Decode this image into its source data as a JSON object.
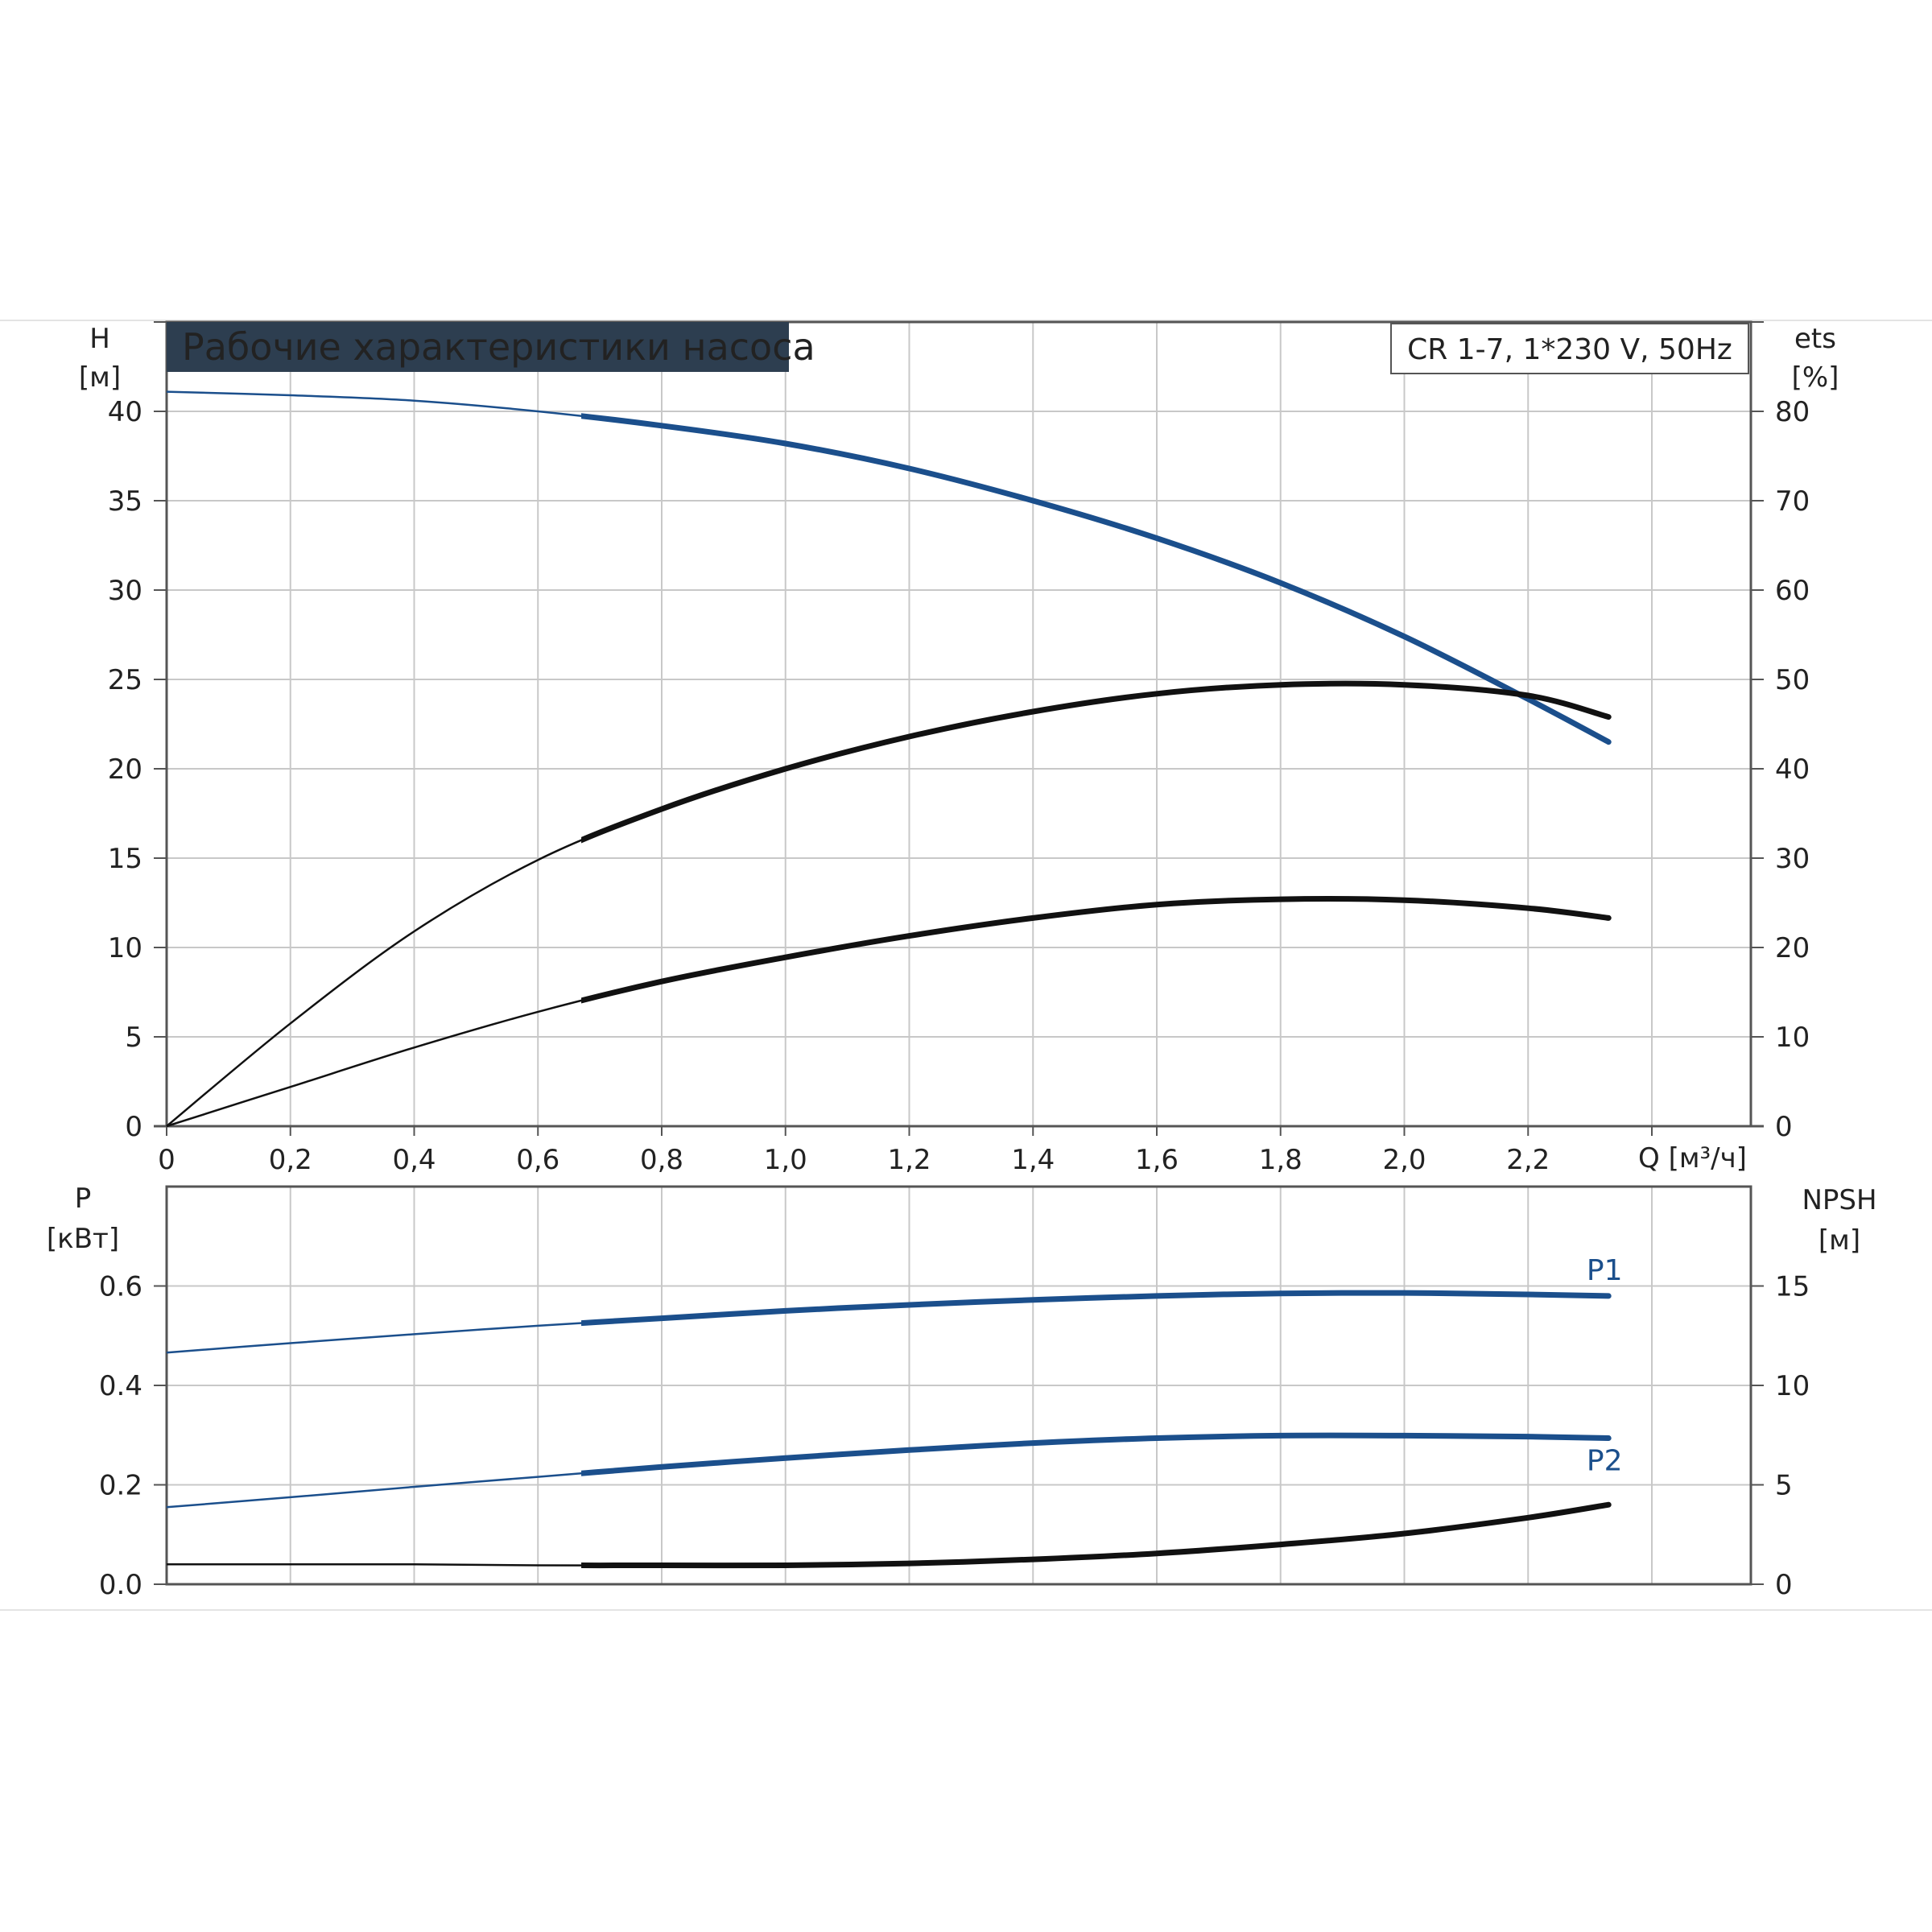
{
  "title": "Рабочие характеристики насоса",
  "model": "CR 1-7, 1*230 V, 50Hz",
  "colors": {
    "blue": "#1b4f8c",
    "black": "#111111",
    "grid": "#c8c8c8",
    "title_bg": "#2d3e50",
    "axis": "#555555"
  },
  "chart_data": [
    {
      "type": "line",
      "title": "Рабочие характеристики насоса",
      "xlabel": "Q [м³/ч]",
      "x_ticks": [
        "0",
        "0,2",
        "0,4",
        "0,6",
        "0,8",
        "1,0",
        "1,2",
        "1,4",
        "1,6",
        "1,8",
        "2,0",
        "2,2"
      ],
      "xlim": [
        0,
        2.56
      ],
      "ylabel_left": {
        "symbol": "H",
        "unit": "[м]"
      },
      "ylabel_right": {
        "symbol": "ets",
        "unit": "[%]"
      },
      "ylim_left": [
        0,
        45
      ],
      "ylim_right": [
        0,
        90
      ],
      "y_ticks_left": [
        "0",
        "5",
        "10",
        "15",
        "20",
        "25",
        "30",
        "35",
        "40"
      ],
      "y_ticks_right": [
        "0",
        "10",
        "20",
        "30",
        "40",
        "50",
        "60",
        "70",
        "80"
      ],
      "grid": true,
      "series": [
        {
          "axis": "left",
          "color": "#1b4f8c",
          "x": [
            0,
            0.2,
            0.4,
            0.6,
            0.8,
            1.0,
            1.2,
            1.4,
            1.6,
            1.8,
            2.0,
            2.2,
            2.33
          ],
          "y": [
            41.1,
            40.9,
            40.6,
            40.0,
            39.2,
            38.2,
            36.8,
            35.0,
            32.9,
            30.4,
            27.4,
            23.9,
            21.5
          ]
        },
        {
          "axis": "right",
          "color": "#111111",
          "x": [
            0,
            0.2,
            0.4,
            0.6,
            0.8,
            1.0,
            1.2,
            1.4,
            1.6,
            1.8,
            2.0,
            2.2,
            2.33
          ],
          "y": [
            0,
            11.5,
            21.8,
            29.8,
            35.5,
            40.0,
            43.6,
            46.4,
            48.4,
            49.4,
            49.4,
            48.2,
            45.8
          ]
        },
        {
          "axis": "right",
          "color": "#111111",
          "x": [
            0,
            0.2,
            0.4,
            0.6,
            0.8,
            1.0,
            1.2,
            1.4,
            1.6,
            1.8,
            2.0,
            2.2,
            2.33
          ],
          "y": [
            0,
            4.4,
            8.8,
            12.8,
            16.2,
            18.9,
            21.3,
            23.3,
            24.8,
            25.4,
            25.3,
            24.4,
            23.3
          ]
        }
      ]
    },
    {
      "type": "line",
      "xlim": [
        0,
        2.56
      ],
      "ylabel_left": {
        "symbol": "P",
        "unit": "[кВт]"
      },
      "ylabel_right": {
        "symbol": "NPSH",
        "unit": "[м]"
      },
      "ylim_left": [
        0,
        0.8
      ],
      "ylim_right": [
        0,
        20
      ],
      "y_ticks_left": [
        "0.0",
        "0.2",
        "0.4",
        "0.6"
      ],
      "y_ticks_right": [
        "0",
        "5",
        "10",
        "15"
      ],
      "grid": true,
      "series": [
        {
          "name": "P1",
          "axis": "left",
          "color": "#1b4f8c",
          "x": [
            0,
            0.2,
            0.4,
            0.6,
            0.8,
            1.0,
            1.2,
            1.4,
            1.6,
            1.8,
            2.0,
            2.2,
            2.33
          ],
          "y": [
            0.466,
            0.485,
            0.503,
            0.52,
            0.535,
            0.55,
            0.562,
            0.572,
            0.58,
            0.585,
            0.586,
            0.583,
            0.58
          ]
        },
        {
          "name": "P2",
          "axis": "left",
          "color": "#1b4f8c",
          "x": [
            0,
            0.2,
            0.4,
            0.6,
            0.8,
            1.0,
            1.2,
            1.4,
            1.6,
            1.8,
            2.0,
            2.2,
            2.33
          ],
          "y": [
            0.155,
            0.175,
            0.196,
            0.216,
            0.236,
            0.254,
            0.27,
            0.284,
            0.294,
            0.299,
            0.299,
            0.297,
            0.294
          ]
        },
        {
          "axis": "right",
          "color": "#111111",
          "x": [
            0,
            0.2,
            0.4,
            0.6,
            0.8,
            1.0,
            1.2,
            1.4,
            1.6,
            1.8,
            2.0,
            2.2,
            2.33
          ],
          "y": [
            1.0,
            1.0,
            1.0,
            0.95,
            0.95,
            0.95,
            1.05,
            1.25,
            1.55,
            2.0,
            2.55,
            3.35,
            4.0
          ]
        }
      ]
    }
  ]
}
